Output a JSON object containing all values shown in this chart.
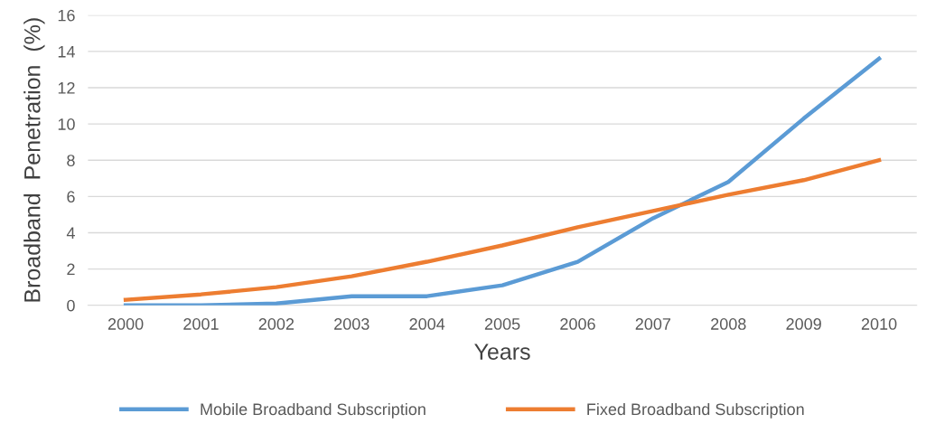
{
  "chart_data": {
    "type": "line",
    "xlabel": "Years",
    "ylabel": "Broadband  Penetration  (%)",
    "categories": [
      "2000",
      "2001",
      "2002",
      "2003",
      "2004",
      "2005",
      "2006",
      "2007",
      "2008",
      "2009",
      "2010"
    ],
    "series": [
      {
        "name": "Mobile Broadband Subscription",
        "color": "#5b9bd5",
        "values": [
          0,
          0,
          0.1,
          0.5,
          0.5,
          1.1,
          2.4,
          4.8,
          6.8,
          10.3,
          13.6
        ]
      },
      {
        "name": "Fixed Broadband Subscription",
        "color": "#ed7d31",
        "values": [
          0.3,
          0.6,
          1.0,
          1.6,
          2.4,
          3.3,
          4.3,
          5.2,
          6.1,
          6.9,
          8.0
        ]
      }
    ],
    "ylim": [
      0,
      16
    ],
    "yticks": [
      0,
      2,
      4,
      6,
      8,
      10,
      12,
      14,
      16
    ],
    "grid": "y",
    "legend": "bottom",
    "marker": "none",
    "line_style": "solid"
  }
}
